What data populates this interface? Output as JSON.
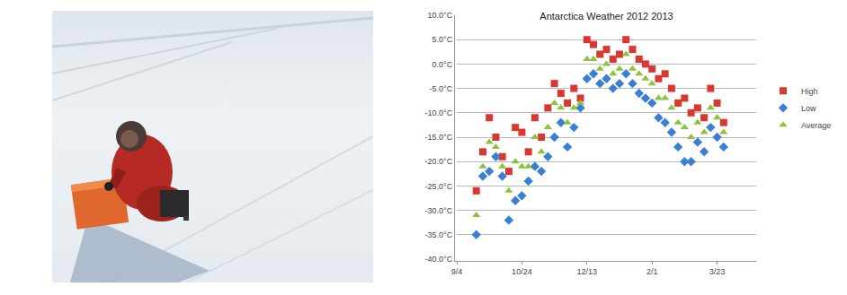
{
  "chart_data": {
    "type": "scatter",
    "title": "Antarctica Weather 2012 2013",
    "categories": [
      "9/4",
      null,
      null,
      null,
      null,
      null,
      null,
      null,
      null,
      null,
      "10/24",
      null,
      null,
      null,
      null,
      null,
      null,
      null,
      null,
      null,
      "12/13",
      null,
      null,
      null,
      null,
      null,
      null,
      null,
      null,
      null,
      "2/1",
      null,
      null,
      null,
      null,
      null,
      null,
      null,
      null,
      null,
      "3/23",
      null,
      null,
      null,
      null,
      null,
      null
    ],
    "series": [
      {
        "name": "High",
        "color": "#d9372f",
        "marker": "square",
        "values": [
          null,
          null,
          null,
          -26,
          -18,
          -11,
          -15,
          -19,
          -22,
          -13,
          -14,
          -18,
          -11,
          -15,
          -9,
          -4,
          -6,
          -8,
          -5,
          -7,
          5,
          4,
          2,
          3,
          1,
          2,
          5,
          3,
          1,
          0,
          -1,
          -3,
          -2,
          -5,
          -8,
          -7,
          -10,
          -9,
          -11,
          -5,
          -8,
          -12,
          null,
          null,
          null,
          null,
          null
        ]
      },
      {
        "name": "Low",
        "color": "#3b7fd4",
        "marker": "diamond",
        "values": [
          null,
          null,
          null,
          -35,
          -23,
          -22,
          -19,
          -23,
          -32,
          -28,
          -27,
          -24,
          -21,
          -22,
          -19,
          -15,
          -12,
          -17,
          -13,
          -9,
          -3,
          -2,
          -4,
          -3,
          -5,
          -4,
          -2,
          -4,
          -6,
          -7,
          -8,
          -11,
          -12,
          -14,
          -17,
          -20,
          -20,
          -16,
          -18,
          -13,
          -15,
          -17,
          null,
          null,
          null,
          null,
          null
        ]
      },
      {
        "name": "Average",
        "color": "#8dc23d",
        "marker": "triangle-up",
        "values": [
          null,
          null,
          null,
          -31,
          -21,
          -16,
          -17,
          -21,
          -26,
          -20,
          -21,
          -21,
          -15,
          -18,
          -13,
          -8,
          -9,
          -12,
          -9,
          -8,
          1,
          1,
          -1,
          0,
          -2,
          -1,
          2,
          -1,
          -2,
          -3,
          -4,
          -7,
          -7,
          -9,
          -12,
          -13,
          -15,
          -12,
          -14,
          -9,
          -11,
          -14,
          null,
          null,
          null,
          null,
          null
        ]
      }
    ],
    "ylim": [
      -40,
      10
    ],
    "yticks": [
      {
        "value": 10,
        "label": "10.0°C"
      },
      {
        "value": 5,
        "label": "5.0°C"
      },
      {
        "value": 0,
        "label": "0.0°C"
      },
      {
        "value": -5,
        "label": "-5.0°C"
      },
      {
        "value": -10,
        "label": "-10.0°C"
      },
      {
        "value": -15,
        "label": "-15.0°C"
      },
      {
        "value": -20,
        "label": "-20.0°C"
      },
      {
        "value": -25,
        "label": "-25.0°C"
      },
      {
        "value": -30,
        "label": "-30.0°C"
      },
      {
        "value": -35,
        "label": "-35.0°C"
      },
      {
        "value": -40,
        "label": "-40.0°C"
      }
    ],
    "grid": true,
    "legend": "right"
  }
}
